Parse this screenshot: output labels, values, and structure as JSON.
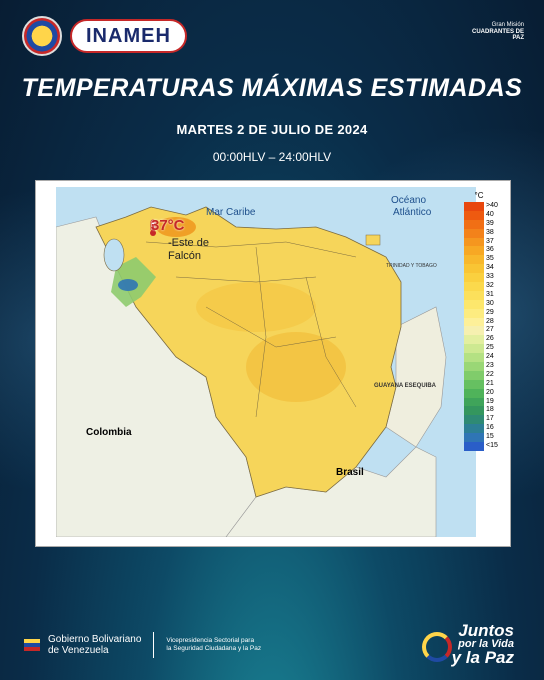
{
  "header": {
    "agency_logo": "INAMEH",
    "mission_line1": "Gran Misión",
    "mission_line2": "CUADRANTES DE PAZ"
  },
  "title": "TEMPERATURAS MÁXIMAS ESTIMADAS",
  "date": "MARTES 2 DE JULIO DE 2024",
  "hours": "00:00HLV – 24:00HLV",
  "map": {
    "highlight_value": "37°C",
    "highlight_place_line1": "-Este de",
    "highlight_place_line2": "Falcón",
    "labels": {
      "caribbean": "Mar Caribe",
      "atlantic_1": "Océano",
      "atlantic_2": "Atlántico",
      "colombia": "Colombia",
      "brasil": "Brasil",
      "guyana": "GUAYANA ESEQUIBA",
      "trinidad": "TRINIDAD Y TOBAGO"
    }
  },
  "legend": {
    "unit": "°C",
    "items": [
      {
        "label": ">40",
        "color": "#e8470e"
      },
      {
        "label": "40",
        "color": "#ee5a10"
      },
      {
        "label": "39",
        "color": "#f16f15"
      },
      {
        "label": "38",
        "color": "#f3821a"
      },
      {
        "label": "37",
        "color": "#f5961f"
      },
      {
        "label": "36",
        "color": "#f7a824"
      },
      {
        "label": "35",
        "color": "#f8b82c"
      },
      {
        "label": "34",
        "color": "#f9c534"
      },
      {
        "label": "33",
        "color": "#fad03f"
      },
      {
        "label": "32",
        "color": "#fbd94c"
      },
      {
        "label": "31",
        "color": "#fce05b"
      },
      {
        "label": "30",
        "color": "#fde76c"
      },
      {
        "label": "29",
        "color": "#fdec80"
      },
      {
        "label": "28",
        "color": "#fdf099"
      },
      {
        "label": "27",
        "color": "#f6f0b0"
      },
      {
        "label": "26",
        "color": "#e3efa0"
      },
      {
        "label": "25",
        "color": "#cde991"
      },
      {
        "label": "24",
        "color": "#b4e183"
      },
      {
        "label": "23",
        "color": "#9ad776"
      },
      {
        "label": "22",
        "color": "#80cc6b"
      },
      {
        "label": "21",
        "color": "#66c061"
      },
      {
        "label": "20",
        "color": "#4fb35a"
      },
      {
        "label": "19",
        "color": "#3fa45a"
      },
      {
        "label": "18",
        "color": "#34965e"
      },
      {
        "label": "17",
        "color": "#2e8a74"
      },
      {
        "label": "16",
        "color": "#2c7f95"
      },
      {
        "label": "15",
        "color": "#2f75b5"
      },
      {
        "label": "<15",
        "color": "#2a5ec8"
      }
    ]
  },
  "footer": {
    "gob_line1": "Gobierno Bolivariano",
    "gob_line2": "de Venezuela",
    "vice_line1": "Vicepresidencia Sectorial para",
    "vice_line2": "la Seguridad Ciudadana y la Paz",
    "juntos_line1": "Juntos",
    "juntos_line2": "por la Vida",
    "juntos_line3": "y la Paz"
  }
}
